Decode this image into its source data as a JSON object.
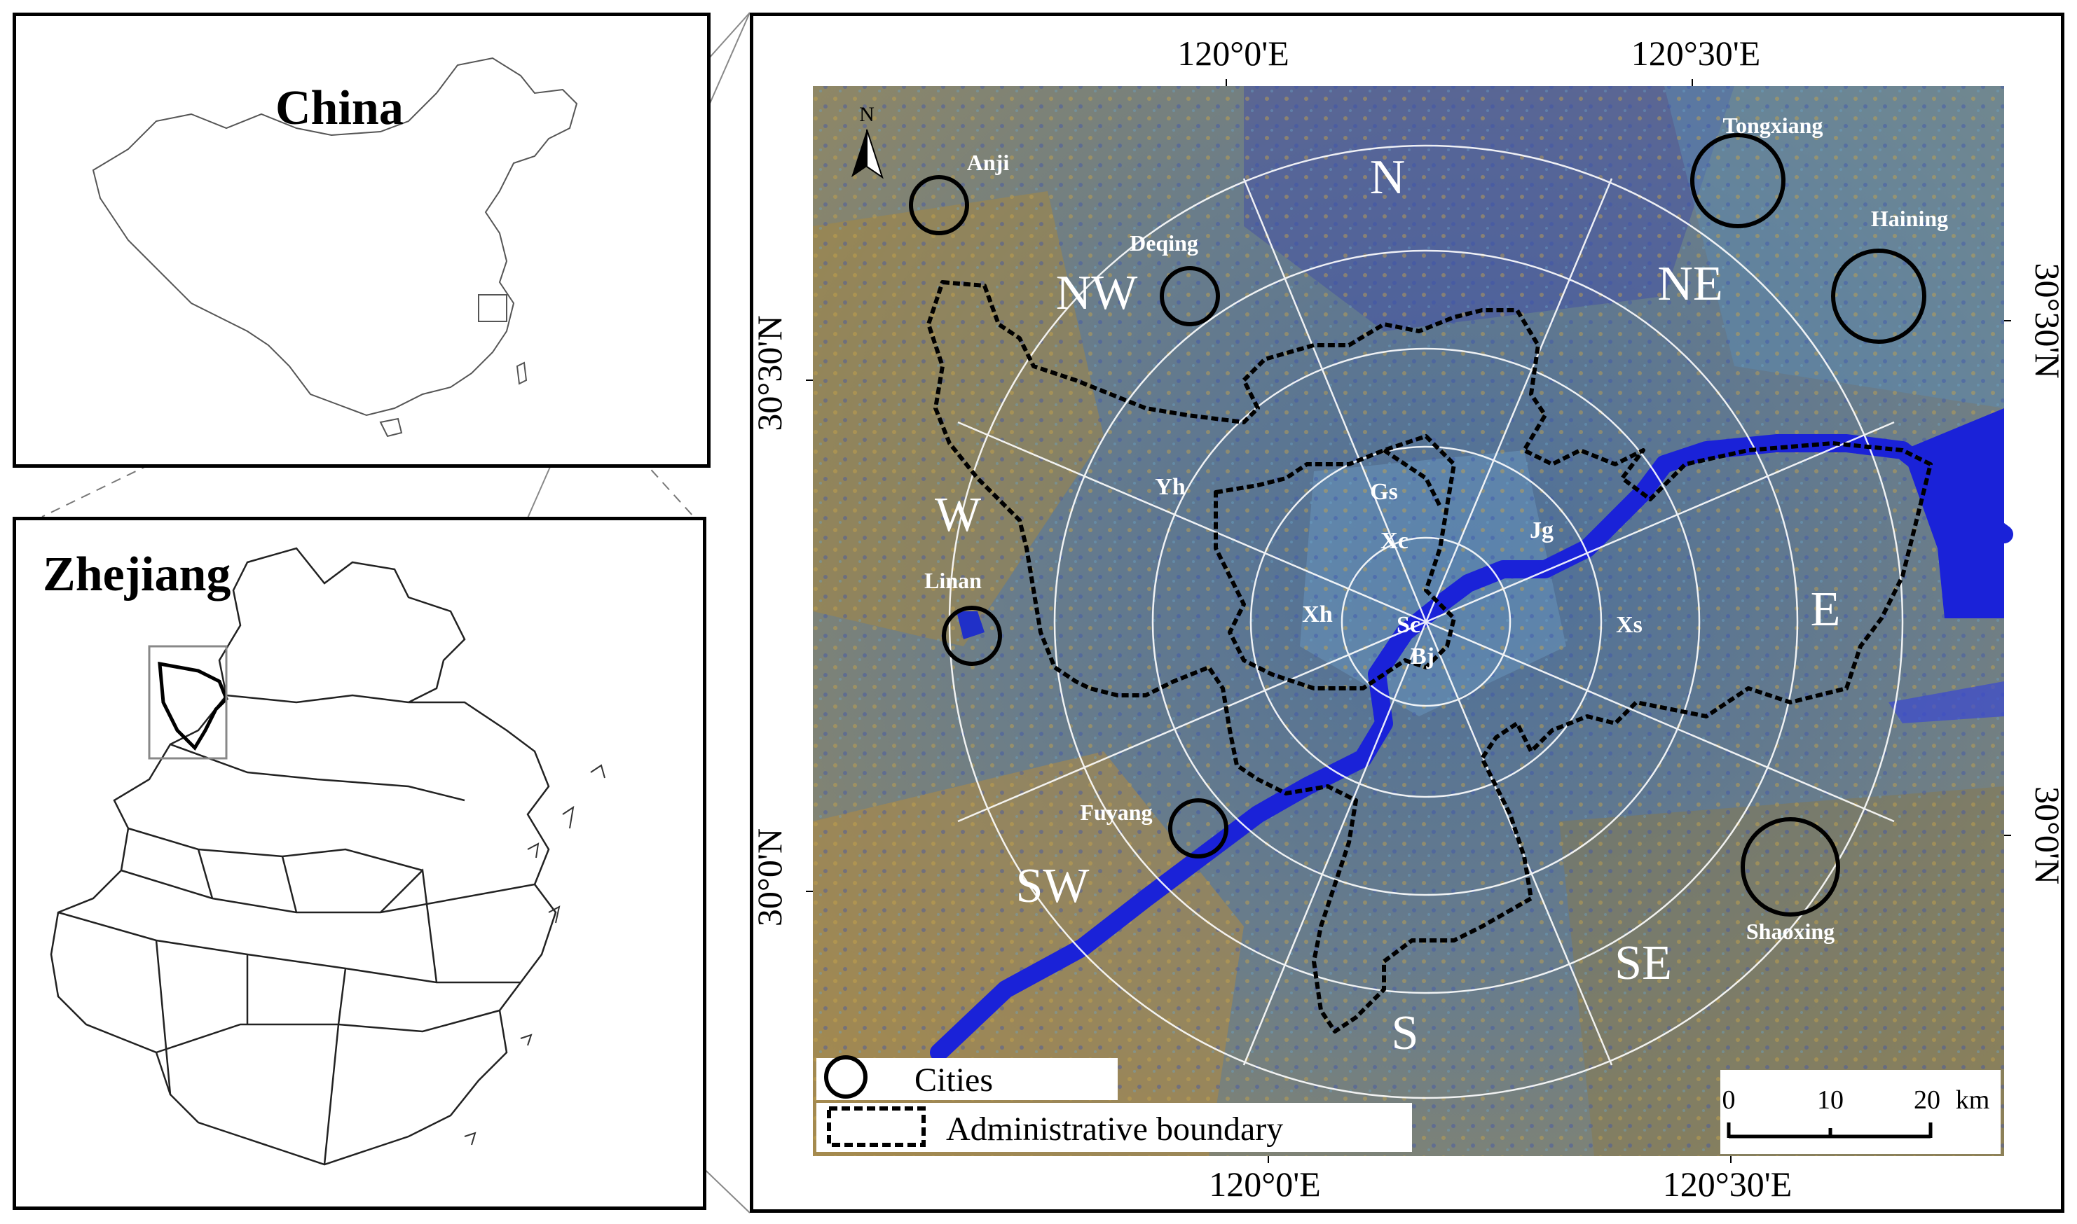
{
  "inset_china": {
    "title": "China"
  },
  "inset_zhejiang": {
    "title": "Zhejiang"
  },
  "main_map": {
    "top_ticks": [
      "120°0'E",
      "120°30'E"
    ],
    "bottom_ticks": [
      "120°0'E",
      "120°30'E"
    ],
    "left_ticks": [
      "30°30'N",
      "30°0'N"
    ],
    "right_ticks": [
      "30°30'N",
      "30°0'N"
    ],
    "north_arrow": "N",
    "directions": {
      "N": "N",
      "NE": "NE",
      "E": "E",
      "SE": "SE",
      "S": "S",
      "SW": "SW",
      "W": "W",
      "NW": "NW"
    },
    "districts": [
      "Yh",
      "Gs",
      "Xc",
      "Jg",
      "Xh",
      "Sc",
      "Bj",
      "Xs"
    ],
    "cities": [
      "Anji",
      "Deqing",
      "Tongxiang",
      "Haining",
      "Linan",
      "Fuyang",
      "Shaoxing"
    ],
    "legend": {
      "cities": "Cities",
      "boundary": "Administrative boundary"
    },
    "scale_bar": {
      "labels": [
        "0",
        "10",
        "20"
      ],
      "unit": "km"
    }
  },
  "colors": {
    "ring": "#ffffff",
    "boundary": "#000000",
    "river": "#1a22d8",
    "water_city": "#2030c8"
  }
}
